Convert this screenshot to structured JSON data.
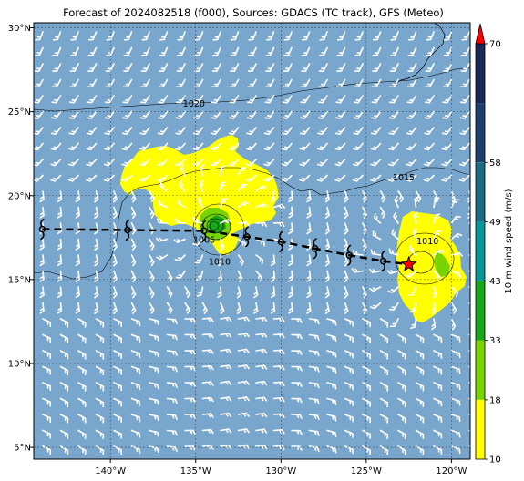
{
  "title": "Forecast of 2024082518 (f000), Sources: GDACS (TC track), GFS (Meteo)",
  "map": {
    "lon_range": [
      -144.5,
      -118.9
    ],
    "lat_range": [
      4.3,
      30.3
    ],
    "x_ticks": [
      {
        "lon": -140,
        "label": "140°W"
      },
      {
        "lon": -135,
        "label": "135°W"
      },
      {
        "lon": -130,
        "label": "130°W"
      },
      {
        "lon": -125,
        "label": "125°W"
      },
      {
        "lon": -120,
        "label": "120°W"
      }
    ],
    "y_ticks": [
      {
        "lat": 5,
        "label": "5°N"
      },
      {
        "lat": 10,
        "label": "10°N"
      },
      {
        "lat": 15,
        "label": "15°N"
      },
      {
        "lat": 20,
        "label": "20°N"
      },
      {
        "lat": 25,
        "label": "25°N"
      },
      {
        "lat": 30,
        "label": "30°N"
      }
    ],
    "gridlines": "dotted",
    "ocean_color": "#79a6cc"
  },
  "contours": [
    {
      "label": "1020",
      "label_lon": -135.1,
      "label_lat": 25.3
    },
    {
      "label": "1015",
      "label_lon": -122.8,
      "label_lat": 20.9
    },
    {
      "label": "1010",
      "label_lon": -133.6,
      "label_lat": 15.9
    },
    {
      "label": "1010",
      "label_lon": -121.4,
      "label_lat": 17.1
    },
    {
      "label": "1005",
      "label_lon": -134.5,
      "label_lat": 17.2
    }
  ],
  "track": {
    "style": "dashed",
    "points": [
      {
        "lon": -144.0,
        "lat": 18.0
      },
      {
        "lon": -139.0,
        "lat": 17.95
      },
      {
        "lon": -134.5,
        "lat": 17.9
      },
      {
        "lon": -132.0,
        "lat": 17.55
      },
      {
        "lon": -130.0,
        "lat": 17.25
      },
      {
        "lon": -128.0,
        "lat": 16.85
      },
      {
        "lon": -126.0,
        "lat": 16.45
      },
      {
        "lon": -124.0,
        "lat": 16.1
      },
      {
        "lon": -122.5,
        "lat": 15.9
      }
    ],
    "current_position": {
      "lon": -122.5,
      "lat": 15.9,
      "marker": "star",
      "color": "#ff0000"
    }
  },
  "colorbar": {
    "label": "10 m wind speed (m/s)",
    "ticks": [
      "10",
      "18",
      "33",
      "43",
      "49",
      "58",
      "70"
    ],
    "colors": [
      "#ffff00",
      "#78d400",
      "#1aa61a",
      "#0a9696",
      "#1b6b80",
      "#1f3f6e",
      "#1a2757"
    ],
    "extend_color": "#ff0000"
  }
}
